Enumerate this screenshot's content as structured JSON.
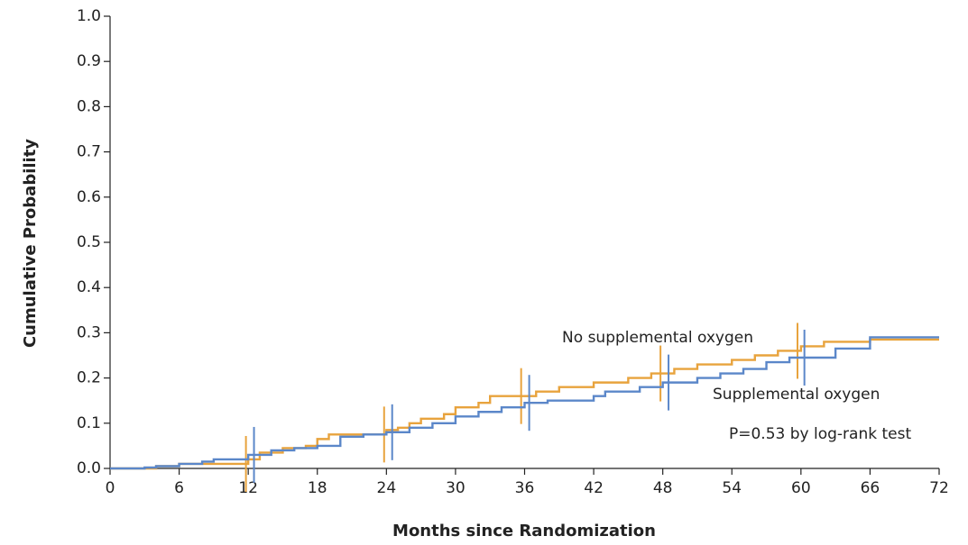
{
  "chart_data": {
    "type": "line",
    "step": "post",
    "xlabel": "Months since Randomization",
    "ylabel": "Cumulative Probability",
    "xlim": [
      0,
      72
    ],
    "ylim": [
      0,
      1
    ],
    "xticks": [
      0,
      6,
      12,
      18,
      24,
      30,
      36,
      42,
      48,
      54,
      60,
      66,
      72
    ],
    "yticks": [
      {
        "value": 0,
        "label": "0.0"
      },
      0.1,
      0.2,
      0.3,
      0.4,
      0.5,
      0.6,
      0.7,
      0.8,
      0.9,
      {
        "value": 1,
        "label": "1.0"
      }
    ],
    "series": [
      {
        "name": "No supplemental oxygen",
        "color": "#e8a33d",
        "x": [
          0,
          4,
          6,
          12,
          13,
          15,
          17,
          18,
          19,
          24,
          25,
          26,
          27,
          29,
          30,
          32,
          33,
          37,
          39,
          42,
          45,
          47,
          49,
          51,
          54,
          56,
          58,
          60,
          62,
          66,
          72
        ],
        "values": [
          0,
          0.005,
          0.01,
          0.02,
          0.035,
          0.045,
          0.05,
          0.065,
          0.075,
          0.085,
          0.09,
          0.1,
          0.11,
          0.12,
          0.135,
          0.145,
          0.16,
          0.17,
          0.18,
          0.19,
          0.2,
          0.21,
          0.22,
          0.23,
          0.24,
          0.25,
          0.26,
          0.27,
          0.28,
          0.285,
          0.285
        ],
        "censored": [
          11.8,
          23.8,
          35.7,
          47.8,
          59.7
        ]
      },
      {
        "name": "Supplemental oxygen",
        "color": "#5b87c9",
        "x": [
          0,
          3,
          4,
          6,
          8,
          9,
          12,
          14,
          16,
          18,
          20,
          22,
          24,
          26,
          28,
          30,
          32,
          34,
          36,
          38,
          42,
          43,
          46,
          48,
          51,
          53,
          55,
          57,
          59,
          63,
          66,
          72
        ],
        "values": [
          0,
          0.002,
          0.005,
          0.01,
          0.015,
          0.02,
          0.03,
          0.04,
          0.045,
          0.05,
          0.07,
          0.075,
          0.08,
          0.09,
          0.1,
          0.115,
          0.125,
          0.135,
          0.145,
          0.15,
          0.16,
          0.17,
          0.18,
          0.19,
          0.2,
          0.21,
          0.22,
          0.235,
          0.245,
          0.265,
          0.29,
          0.29
        ],
        "censored": [
          12.5,
          24.5,
          36.4,
          48.5,
          60.3
        ]
      }
    ],
    "annotations": [
      "P=0.53 by log-rank test"
    ]
  }
}
